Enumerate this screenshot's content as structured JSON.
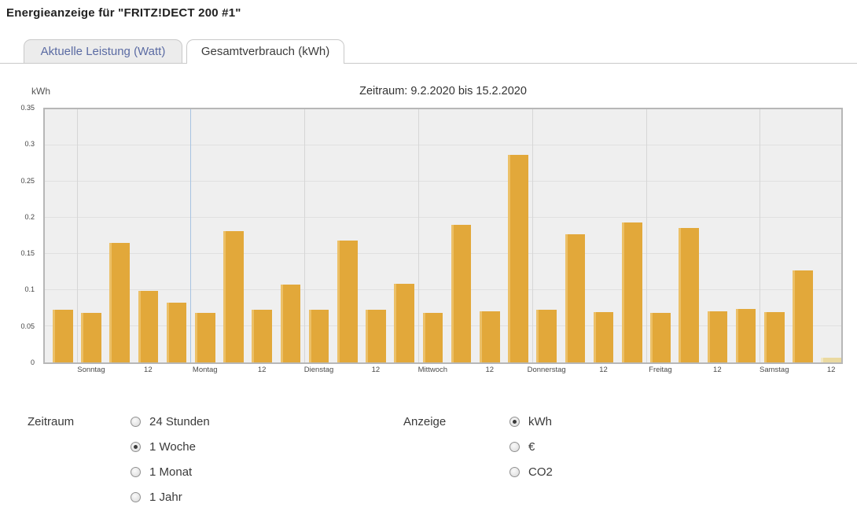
{
  "page": {
    "title": "Energieanzeige für \"FRITZ!DECT 200 #1\""
  },
  "tabs": [
    {
      "label": "Aktuelle Leistung (Watt)",
      "active": false
    },
    {
      "label": "Gesamtverbrauch (kWh)",
      "active": true
    }
  ],
  "chart_data": {
    "type": "bar",
    "title": "Zeitraum: 9.2.2020 bis 15.2.2020",
    "ylabel": "kWh",
    "ylim": [
      0,
      0.35
    ],
    "ytick_step": 0.05,
    "grid": true,
    "x_labels": [
      "Sonntag",
      "12",
      "Montag",
      "12",
      "Dienstag",
      "12",
      "Mittwoch",
      "12",
      "Donnerstag",
      "12",
      "Freitag",
      "12",
      "Samstag",
      "12"
    ],
    "values": [
      0.073,
      0.068,
      0.165,
      0.099,
      0.083,
      0.068,
      0.181,
      0.073,
      0.108,
      0.073,
      0.169,
      0.073,
      0.109,
      0.068,
      0.19,
      0.071,
      0.287,
      0.073,
      0.177,
      0.07,
      0.193,
      0.068,
      0.186,
      0.071,
      0.074,
      0.07,
      0.127,
      0.007
    ],
    "last_bar_incomplete": true,
    "day_boundaries_before_bar": [
      1,
      5,
      9,
      13,
      17,
      21,
      25
    ],
    "blue_boundary_before_bar": 5,
    "bar_color": "#e2a83a",
    "incomplete_bar_color": "#ead9a0",
    "plot_background": "#efefef",
    "legend": "none"
  },
  "controls": {
    "zeitraum": {
      "label": "Zeitraum",
      "options": [
        {
          "label": "24 Stunden",
          "selected": false
        },
        {
          "label": "1 Woche",
          "selected": true
        },
        {
          "label": "1 Monat",
          "selected": false
        },
        {
          "label": "1 Jahr",
          "selected": false
        }
      ]
    },
    "anzeige": {
      "label": "Anzeige",
      "options": [
        {
          "label": "kWh",
          "selected": true
        },
        {
          "label": "€",
          "selected": false
        },
        {
          "label": "CO2",
          "selected": false
        }
      ]
    }
  }
}
